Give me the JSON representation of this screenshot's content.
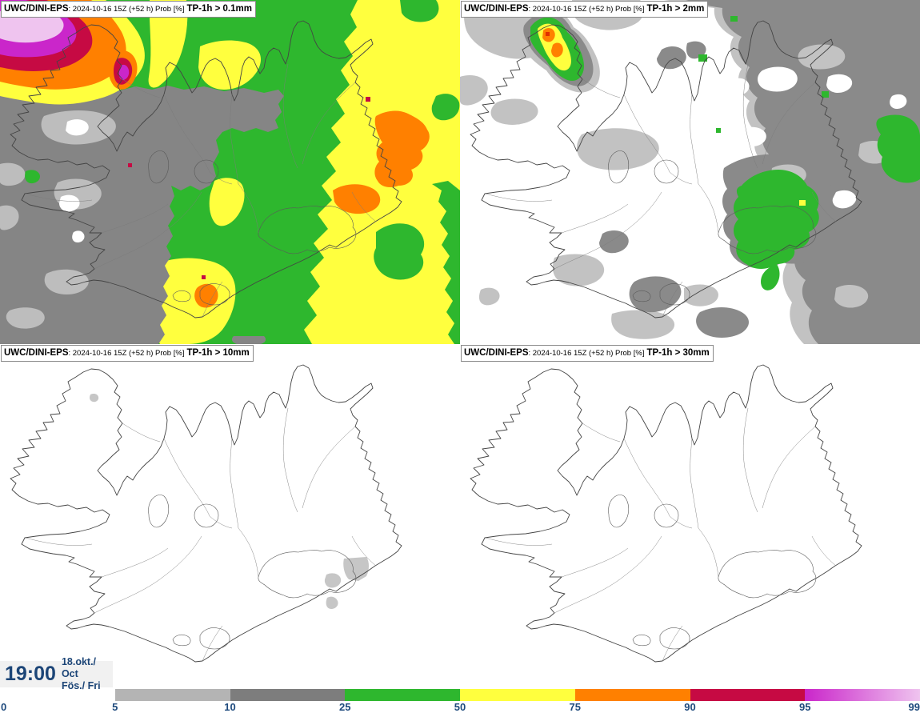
{
  "panels": [
    {
      "model": "UWC/DINI-EPS",
      "info": ": 2024-10-16 15Z (+52 h) Prob [%]",
      "threshold": "TP-1h > 0.1mm"
    },
    {
      "model": "UWC/DINI-EPS",
      "info": ": 2024-10-16 15Z (+52 h) Prob [%]",
      "threshold": "TP-1h > 2mm"
    },
    {
      "model": "UWC/DINI-EPS",
      "info": ": 2024-10-16 15Z (+52 h) Prob [%]",
      "threshold": "TP-1h > 10mm"
    },
    {
      "model": "UWC/DINI-EPS",
      "info": ": 2024-10-16 15Z (+52 h) Prob [%]",
      "threshold": "TP-1h > 30mm"
    }
  ],
  "time_display": {
    "time": "19:00",
    "date": "18.okt./ Oct",
    "day": "Fös./ Fri"
  },
  "legend": {
    "ticks": [
      "0",
      "5",
      "10",
      "25",
      "50",
      "75",
      "90",
      "95",
      "99"
    ],
    "segments": [
      {
        "range": "5-10",
        "color": "#b4b4b4"
      },
      {
        "range": "10-25",
        "color": "#7d7d7d"
      },
      {
        "range": "25-50",
        "color": "#2eb72e"
      },
      {
        "range": "50-75",
        "color": "#ffff3e"
      },
      {
        "range": "75-90",
        "color": "#ff8000"
      },
      {
        "range": "90-95",
        "color": "#c60a43"
      },
      {
        "range": "95-99",
        "color": "#ca26ca",
        "color_end": "#efc4ef"
      }
    ],
    "tick_text_color": "#1e4a7d"
  },
  "palette": {
    "prob_5_10": "#b4b4b4",
    "prob_10_25": "#858585",
    "prob_25_50": "#2eb72e",
    "prob_50_75": "#ffff3e",
    "prob_75_90": "#ff8000",
    "prob_90_95": "#c60a43",
    "prob_95_99": "#ca26ca",
    "prob_99_plus": "#efc4ef",
    "time_text": "#1c4577",
    "coastline": "#444444"
  }
}
